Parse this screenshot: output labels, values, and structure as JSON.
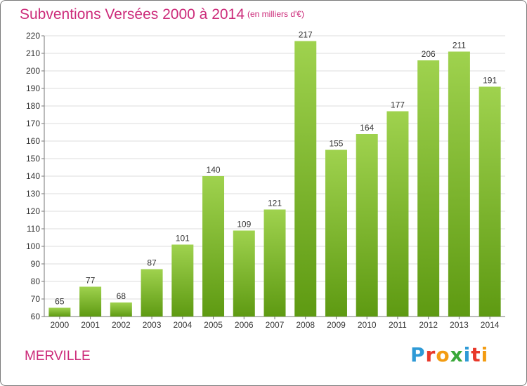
{
  "header": {
    "title": "Subventions Versées 2000 à 2014",
    "unit": "(en milliers d'€)"
  },
  "footer": {
    "commune": "MERVILLE",
    "logo_text": "Proxiti"
  },
  "colors": {
    "accent": "#cc2b7a",
    "bar_light": "#9fd24e",
    "bar_dark": "#5e9a12",
    "grid": "#dcdcdc",
    "background": "#ffffff"
  },
  "chart_data": {
    "type": "bar",
    "title": "Subventions Versées 2000 à 2014",
    "subtitle": "(en milliers d'€)",
    "xlabel": "",
    "ylabel": "",
    "categories": [
      "2000",
      "2001",
      "2002",
      "2003",
      "2004",
      "2005",
      "2006",
      "2007",
      "2008",
      "2009",
      "2010",
      "2011",
      "2012",
      "2013",
      "2014"
    ],
    "values": [
      65,
      77,
      68,
      87,
      101,
      140,
      109,
      121,
      217,
      155,
      164,
      177,
      206,
      211,
      191
    ],
    "ylim": [
      60,
      220
    ],
    "yticks": [
      60,
      70,
      80,
      90,
      100,
      110,
      120,
      130,
      140,
      150,
      160,
      170,
      180,
      190,
      200,
      210,
      220
    ],
    "grid": true,
    "data_labels": true,
    "legend": "none"
  }
}
